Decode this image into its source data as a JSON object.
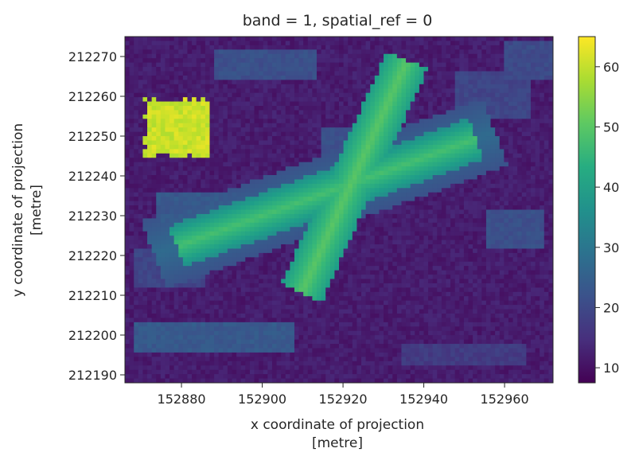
{
  "chart_data": {
    "type": "heatmap",
    "title": "band = 1, spatial_ref = 0",
    "xlabel_line1": "x coordinate of projection",
    "xlabel_line2": "[metre]",
    "ylabel_line1": "y coordinate of projection",
    "ylabel_line2": "[metre]",
    "xlim": [
      152866,
      152972
    ],
    "ylim": [
      212188,
      212275
    ],
    "x_ticks": [
      152880,
      152900,
      152920,
      152940,
      152960
    ],
    "y_ticks": [
      212190,
      212200,
      212210,
      212220,
      212230,
      212240,
      212250,
      212260,
      212270
    ],
    "colorbar": {
      "colormap": "viridis",
      "range": [
        7.5,
        65
      ],
      "ticks": [
        10,
        20,
        30,
        40,
        50,
        60
      ]
    },
    "value_summary": {
      "background_low": 10,
      "surrounding_band": 22,
      "roof_ridges": 48,
      "peak_feature": 63
    }
  }
}
